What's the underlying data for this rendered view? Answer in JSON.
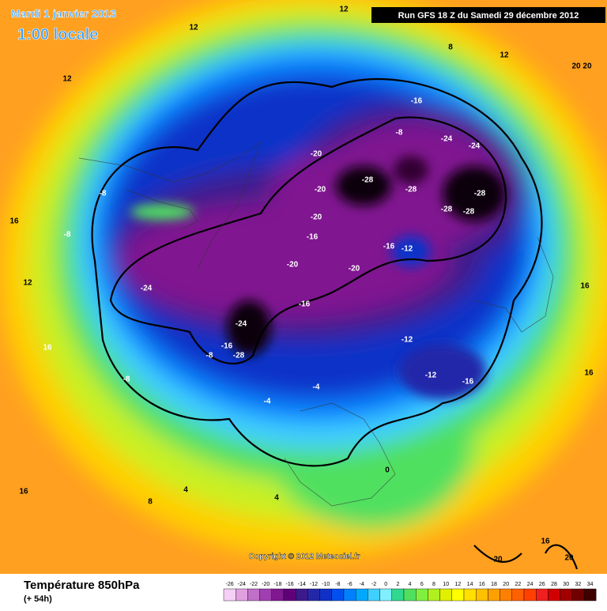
{
  "header": {
    "date": "Mardi 1 janvier 2013",
    "time": "1:00 locale",
    "run": "Run GFS 18 Z du Samedi 29 décembre 2012"
  },
  "copyright": "Copyright © 2012 Meteociel.fr",
  "footer": {
    "parameter": "Température 850hPa",
    "lead": "(+ 54h)"
  },
  "scale": {
    "values": [
      -26,
      -24,
      -22,
      -20,
      -18,
      -16,
      -14,
      -12,
      -10,
      -8,
      -6,
      -4,
      -2,
      0,
      2,
      4,
      6,
      8,
      10,
      12,
      14,
      16,
      18,
      20,
      22,
      24,
      26,
      28,
      30,
      32,
      34
    ],
    "colors": [
      "#f4d0f4",
      "#e0a0e0",
      "#c070c8",
      "#a040b0",
      "#801890",
      "#600078",
      "#3c1a8c",
      "#2428a8",
      "#1030c8",
      "#0050f0",
      "#0080ff",
      "#00a8ff",
      "#40d0ff",
      "#80f0ff",
      "#30d890",
      "#50e060",
      "#80f040",
      "#b0f020",
      "#e0f000",
      "#ffff00",
      "#ffe000",
      "#ffc000",
      "#ffa000",
      "#ff8000",
      "#ff6000",
      "#ff4000",
      "#f02020",
      "#d00000",
      "#a00000",
      "#700000",
      "#400000"
    ]
  },
  "map_labels": [
    "-24",
    "-24",
    "-28",
    "-16",
    "-28",
    "-28",
    "-28",
    "-28",
    "-28",
    "-16",
    "-24",
    "-24",
    "-20",
    "-20",
    "-20",
    "-16",
    "-20",
    "-20",
    "-12",
    "-16",
    "-16",
    "-12",
    "-12",
    "-16",
    "-8",
    "-8",
    "-8",
    "-8",
    "-8",
    "-4",
    "-4",
    "4",
    "4",
    "0",
    "8",
    "16",
    "16",
    "12",
    "16",
    "16",
    "20",
    "20",
    "12",
    "8",
    "12",
    "12",
    "12",
    "16",
    "16",
    "20 20"
  ]
}
